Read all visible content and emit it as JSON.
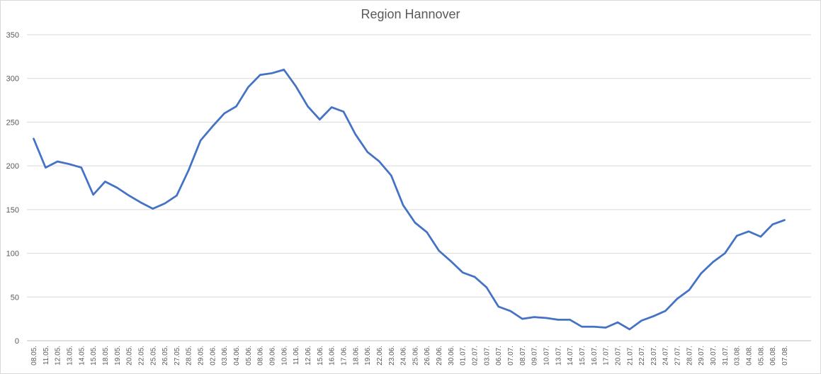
{
  "chart_data": {
    "type": "line",
    "title": "Region Hannover",
    "xlabel": "",
    "ylabel": "",
    "ylim": [
      0,
      350
    ],
    "yticks": [
      0,
      50,
      100,
      150,
      200,
      250,
      300,
      350
    ],
    "grid": true,
    "legend": "none",
    "categories": [
      "08.05.",
      "11.05.",
      "12.05.",
      "13.05.",
      "14.05.",
      "15.05.",
      "18.05.",
      "19.05.",
      "20.05.",
      "22.05.",
      "25.05.",
      "26.05.",
      "27.05.",
      "28.05.",
      "29.05.",
      "02.06.",
      "03.06.",
      "04.06.",
      "05.06.",
      "08.06.",
      "09.06.",
      "10.06.",
      "11.06.",
      "12.06.",
      "15.06.",
      "16.06.",
      "17.06.",
      "18.06.",
      "19.06.",
      "22.06.",
      "23.06.",
      "24.06.",
      "25.06.",
      "26.06.",
      "29.06.",
      "30.06.",
      "01.07.",
      "02.07.",
      "03.07.",
      "06.07.",
      "07.07.",
      "08.07.",
      "09.07.",
      "10.07.",
      "13.07.",
      "14.07.",
      "15.07.",
      "16.07.",
      "17.07.",
      "20.07.",
      "21.07.",
      "22.07.",
      "23.07.",
      "24.07.",
      "27.07.",
      "28.07.",
      "29.07.",
      "30.07.",
      "31.07.",
      "03.08.",
      "04.08.",
      "05.08.",
      "06.08.",
      "07.08."
    ],
    "series": [
      {
        "color": "#4472c4",
        "values": [
          231,
          198,
          205,
          202,
          198,
          167,
          182,
          175,
          166,
          158,
          151,
          157,
          166,
          195,
          229,
          245,
          260,
          268,
          290,
          304,
          306,
          310,
          291,
          268,
          253,
          267,
          262,
          236,
          216,
          205,
          189,
          155,
          135,
          124,
          103,
          91,
          78,
          73,
          61,
          39,
          34,
          25,
          27,
          26,
          24,
          24,
          16,
          16,
          15,
          21,
          13,
          23,
          28,
          34,
          48,
          58,
          77,
          90,
          100,
          120,
          125,
          119,
          133,
          138
        ]
      }
    ]
  }
}
